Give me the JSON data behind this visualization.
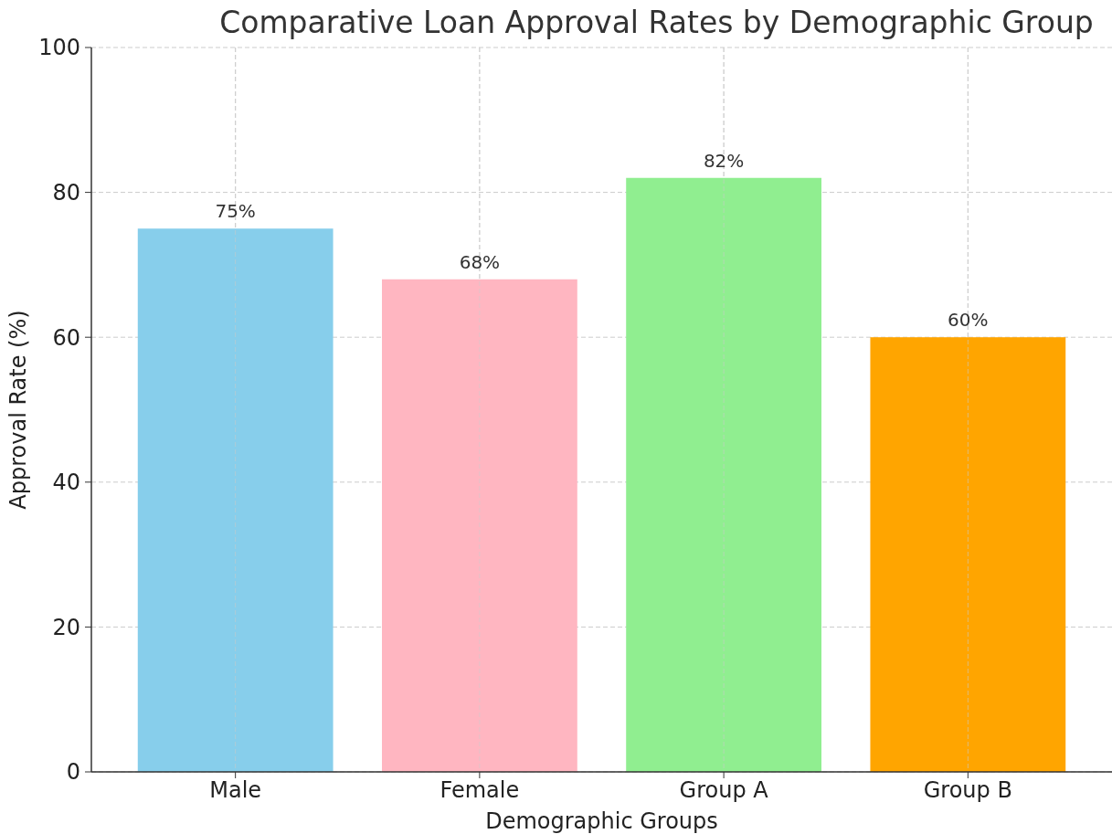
{
  "chart_data": {
    "type": "bar",
    "title": "Comparative Loan Approval Rates by Demographic Group",
    "xlabel": "Demographic Groups",
    "ylabel": "Approval Rate (%)",
    "categories": [
      "Male",
      "Female",
      "Group A",
      "Group B"
    ],
    "values": [
      75,
      68,
      82,
      60
    ],
    "colors": [
      "#87ceeb",
      "#ffb6c1",
      "#90ee90",
      "#ffa500"
    ],
    "value_labels": [
      "75%",
      "68%",
      "82%",
      "60%"
    ],
    "ylim": [
      0,
      100
    ],
    "yticks": [
      0,
      20,
      40,
      60,
      80,
      100
    ],
    "grid": true
  }
}
